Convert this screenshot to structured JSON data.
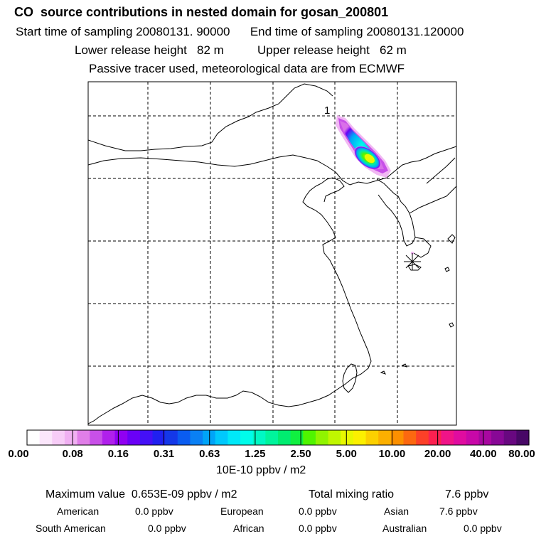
{
  "header": {
    "title": "CO  source contributions in nested domain for gosan_200801",
    "start_label": "Start time of sampling",
    "start_value": "20080131. 90000",
    "end_label": "End time of sampling",
    "end_value": "20080131.120000",
    "lower_label": "Lower release height",
    "lower_value": "82 m",
    "upper_label": "Upper release height",
    "upper_value": "62 m",
    "tracer_note": "Passive tracer used, meteorological data are from ECMWF"
  },
  "map": {
    "marker_label": "1",
    "station_symbol": "asterisk"
  },
  "colorbar": {
    "ticks": [
      "0.00",
      "0.08",
      "0.16",
      "0.31",
      "0.63",
      "1.25",
      "2.50",
      "5.00",
      "10.00",
      "20.00",
      "40.00",
      "80.00"
    ],
    "colors": [
      "#ffffff",
      "#fbe6fb",
      "#f7ccf7",
      "#f0b0f2",
      "#e07ee8",
      "#c850e8",
      "#b020ec",
      "#9000f2",
      "#6a00f6",
      "#4410f6",
      "#2020f0",
      "#1438e8",
      "#0a5cf0",
      "#0a80f4",
      "#00a4f8",
      "#00c8fc",
      "#00e8f8",
      "#00fcea",
      "#00f8c4",
      "#00f49c",
      "#00ec70",
      "#10f040",
      "#50f400",
      "#90f400",
      "#c0f600",
      "#e8f800",
      "#fcf000",
      "#fcd000",
      "#fcb000",
      "#fc9000",
      "#fc6810",
      "#fc4028",
      "#fc2050",
      "#f01488",
      "#e00ca0",
      "#c808a8",
      "#a808a0",
      "#880896",
      "#680880",
      "#480866"
    ],
    "unit": "10E-10 ppbv / m2"
  },
  "stats": {
    "max_label": "Maximum value",
    "max_value": "0.653E-09 ppbv / m2",
    "total_label": "Total mixing ratio",
    "total_value": "7.6 ppbv",
    "regions": [
      {
        "name": "American",
        "value": "0.0 ppbv"
      },
      {
        "name": "European",
        "value": "0.0 ppbv"
      },
      {
        "name": "Asian",
        "value": "7.6 ppbv"
      },
      {
        "name": "South American",
        "value": "0.0 ppbv"
      },
      {
        "name": "African",
        "value": "0.0 ppbv"
      },
      {
        "name": "Australian",
        "value": "0.0 ppbv"
      }
    ]
  }
}
